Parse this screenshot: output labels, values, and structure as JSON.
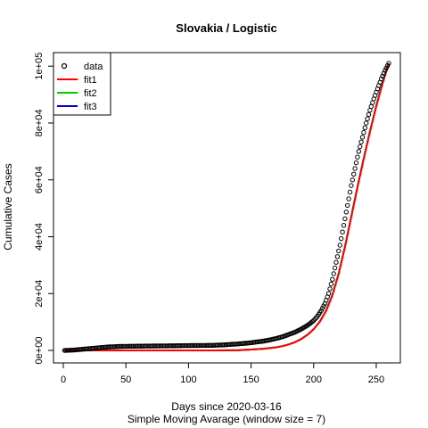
{
  "chart_data": {
    "type": "scatter",
    "title": "Slovakia / Logistic",
    "xlabel": "Days since 2020-03-16",
    "subtitle": "Simple Moving Avarage (window size = 7)",
    "ylabel": "Cumulative Cases",
    "xlim": [
      0,
      260
    ],
    "ylim": [
      0,
      101000
    ],
    "x_ticks": [
      {
        "value": 0,
        "label": "0"
      },
      {
        "value": 50,
        "label": "50"
      },
      {
        "value": 100,
        "label": "100"
      },
      {
        "value": 150,
        "label": "150"
      },
      {
        "value": 200,
        "label": "200"
      },
      {
        "value": 250,
        "label": "250"
      }
    ],
    "y_ticks": [
      {
        "value": 0,
        "label": "0e+00"
      },
      {
        "value": 20000,
        "label": "2e+04"
      },
      {
        "value": 40000,
        "label": "4e+04"
      },
      {
        "value": 60000,
        "label": "6e+04"
      },
      {
        "value": 80000,
        "label": "8e+04"
      },
      {
        "value": 100000,
        "label": "1e+05"
      }
    ],
    "legend": {
      "placement": "top-left",
      "entries": [
        {
          "label": "data",
          "kind": "point",
          "color": "#000000"
        },
        {
          "label": "fit1",
          "kind": "line",
          "color": "#ff0000"
        },
        {
          "label": "fit2",
          "kind": "line",
          "color": "#00cc00"
        },
        {
          "label": "fit3",
          "kind": "line",
          "color": "#0000cc"
        }
      ]
    },
    "series": [
      {
        "name": "data",
        "kind": "points",
        "color": "#000000",
        "x": [
          1,
          5,
          10,
          15,
          20,
          25,
          30,
          35,
          40,
          45,
          50,
          60,
          70,
          80,
          90,
          100,
          110,
          120,
          130,
          140,
          150,
          155,
          160,
          165,
          170,
          175,
          180,
          185,
          190,
          195,
          200,
          203,
          206,
          209,
          212,
          215,
          218,
          221,
          224,
          227,
          230,
          233,
          236,
          239,
          242,
          245,
          248,
          251,
          254,
          257,
          260
        ],
        "y": [
          0,
          50,
          200,
          400,
          600,
          800,
          1000,
          1200,
          1300,
          1400,
          1450,
          1500,
          1550,
          1600,
          1650,
          1700,
          1750,
          1800,
          2000,
          2300,
          2700,
          3000,
          3300,
          3700,
          4200,
          4800,
          5600,
          6400,
          7500,
          8800,
          10500,
          12000,
          14000,
          16500,
          20000,
          25000,
          31000,
          37000,
          44000,
          51000,
          58000,
          64000,
          70000,
          75000,
          80000,
          84500,
          88500,
          92000,
          95500,
          98500,
          101000
        ]
      },
      {
        "name": "fit1",
        "kind": "line",
        "color": "#ff0000",
        "x": [
          0,
          20,
          40,
          60,
          80,
          100,
          120,
          140,
          150,
          160,
          170,
          175,
          180,
          185,
          190,
          195,
          200,
          205,
          210,
          215,
          220,
          225,
          230,
          235,
          240,
          245,
          250,
          255,
          260
        ],
        "y": [
          0,
          0,
          0,
          0,
          0,
          0,
          0,
          100,
          300,
          600,
          1100,
          1500,
          2100,
          2900,
          4000,
          5500,
          7500,
          10200,
          14000,
          19500,
          27000,
          36500,
          47000,
          57500,
          67500,
          77000,
          86000,
          94000,
          101000
        ]
      },
      {
        "name": "fit2",
        "kind": "line",
        "color": "#00cc00",
        "x": [
          0,
          20,
          40,
          60,
          80,
          100,
          120,
          140,
          150,
          160,
          170,
          175,
          180,
          185,
          190,
          195,
          200,
          205,
          210,
          215,
          220,
          225,
          230,
          235,
          240,
          245,
          250,
          255,
          260
        ],
        "y": [
          0,
          0,
          0,
          0,
          0,
          0,
          0,
          100,
          300,
          600,
          1100,
          1500,
          2100,
          2900,
          4000,
          5500,
          7500,
          10200,
          14000,
          19500,
          27000,
          36500,
          47000,
          57500,
          67500,
          77000,
          86000,
          94000,
          101000
        ]
      },
      {
        "name": "fit3",
        "kind": "line",
        "color": "#0000cc",
        "x": [
          0,
          20,
          40,
          60,
          80,
          100,
          120,
          140,
          150,
          160,
          170,
          175,
          180,
          185,
          190,
          195,
          200,
          205,
          210,
          215,
          220,
          225,
          230,
          235,
          240,
          245,
          250,
          255,
          260
        ],
        "y": [
          0,
          0,
          0,
          0,
          0,
          0,
          0,
          100,
          300,
          600,
          1100,
          1500,
          2100,
          2900,
          4000,
          5500,
          7500,
          10200,
          14000,
          19500,
          27000,
          36500,
          47000,
          57500,
          67500,
          77000,
          86000,
          94000,
          101000
        ]
      }
    ]
  }
}
